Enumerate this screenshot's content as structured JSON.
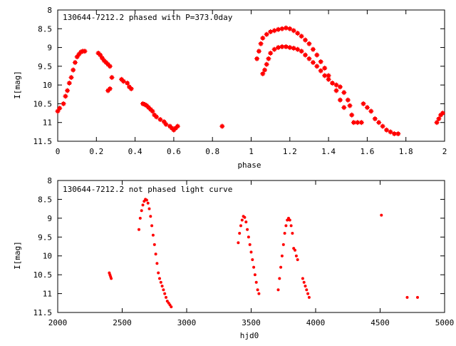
{
  "colors": {
    "points": "#ff0000",
    "axes": "#000000",
    "background": "#ffffff"
  },
  "chart_data": [
    {
      "type": "scatter",
      "title": "130644-7212.2 phased with P=373.0day",
      "xlabel": "phase",
      "ylabel": "I[mag]",
      "xlim": [
        0,
        2
      ],
      "ylim": [
        8,
        11.5
      ],
      "y_inverted": true,
      "grid": false,
      "marker": "star",
      "xticks": [
        "0",
        "0.2",
        "0.4",
        "0.6",
        "0.8",
        "1",
        "1.2",
        "1.4",
        "1.6",
        "1.8",
        "2"
      ],
      "xtick_values": [
        0,
        0.2,
        0.4,
        0.6,
        0.8,
        1,
        1.2,
        1.4,
        1.6,
        1.8,
        2
      ],
      "yticks": [
        "8",
        "8.5",
        "9",
        "9.5",
        "10",
        "10.5",
        "11",
        "11.5"
      ],
      "ytick_values": [
        8,
        8.5,
        9,
        9.5,
        10,
        10.5,
        11,
        11.5
      ],
      "series": [
        {
          "x": [
            0.0,
            0.01,
            0.03,
            0.04,
            0.05,
            0.06,
            0.07,
            0.08,
            0.09,
            0.1,
            0.11,
            0.12,
            0.13,
            0.14,
            0.21,
            0.22,
            0.23,
            0.24,
            0.25,
            0.26,
            0.27,
            0.28,
            0.26,
            0.27,
            0.33,
            0.34,
            0.36,
            0.37,
            0.38,
            0.44,
            0.45,
            0.46,
            0.47,
            0.48,
            0.49,
            0.5,
            0.51,
            0.53,
            0.55,
            0.56,
            0.58,
            0.59,
            0.6,
            0.61,
            0.62,
            0.85,
            1.03,
            1.04,
            1.05,
            1.06,
            1.08,
            1.1,
            1.12,
            1.14,
            1.16,
            1.18,
            1.2,
            1.22,
            1.24,
            1.26,
            1.28,
            1.3,
            1.32,
            1.34,
            1.36,
            1.38,
            1.4,
            1.42,
            1.44,
            1.46,
            1.48,
            1.06,
            1.07,
            1.08,
            1.09,
            1.1,
            1.12,
            1.14,
            1.16,
            1.18,
            1.2,
            1.22,
            1.24,
            1.26,
            1.28,
            1.3,
            1.32,
            1.34,
            1.36,
            1.38,
            1.4,
            1.42,
            1.44,
            1.46,
            1.48,
            1.5,
            1.51,
            1.52,
            1.53,
            1.55,
            1.57,
            1.58,
            1.6,
            1.62,
            1.64,
            1.66,
            1.68,
            1.7,
            1.72,
            1.74,
            1.76,
            1.96,
            1.97,
            1.98,
            1.99
          ],
          "y": [
            10.7,
            10.62,
            10.5,
            10.3,
            10.15,
            9.95,
            9.8,
            9.6,
            9.4,
            9.25,
            9.18,
            9.12,
            9.1,
            9.1,
            9.15,
            9.2,
            9.28,
            9.35,
            9.4,
            9.45,
            9.5,
            9.8,
            10.15,
            10.1,
            9.85,
            9.9,
            9.95,
            10.05,
            10.1,
            10.5,
            10.52,
            10.55,
            10.6,
            10.65,
            10.7,
            10.8,
            10.85,
            10.92,
            10.98,
            11.05,
            11.1,
            11.15,
            11.2,
            11.15,
            11.1,
            11.1,
            9.3,
            9.1,
            8.9,
            8.75,
            8.65,
            8.58,
            8.55,
            8.52,
            8.5,
            8.48,
            8.5,
            8.55,
            8.62,
            8.7,
            8.8,
            8.9,
            9.05,
            9.2,
            9.38,
            9.55,
            9.75,
            9.95,
            10.15,
            10.4,
            10.6,
            9.7,
            9.6,
            9.45,
            9.3,
            9.15,
            9.05,
            9.0,
            8.98,
            8.98,
            9.0,
            9.02,
            9.05,
            9.1,
            9.2,
            9.3,
            9.4,
            9.5,
            9.62,
            9.75,
            9.85,
            9.95,
            10.0,
            10.05,
            10.2,
            10.4,
            10.55,
            10.8,
            11.0,
            11.0,
            11.0,
            10.5,
            10.6,
            10.7,
            10.9,
            11.0,
            11.1,
            11.2,
            11.25,
            11.3,
            11.3,
            11.0,
            10.9,
            10.8,
            10.75
          ]
        }
      ]
    },
    {
      "type": "scatter",
      "title": "130644-7212.2 not phased light curve",
      "xlabel": "hjd0",
      "ylabel": "I[mag]",
      "xlim": [
        2000,
        5000
      ],
      "ylim": [
        8,
        11.5
      ],
      "y_inverted": true,
      "grid": false,
      "marker": "dot",
      "xticks": [
        "2000",
        "2500",
        "3000",
        "3500",
        "4000",
        "4500",
        "5000"
      ],
      "xtick_values": [
        2000,
        2500,
        3000,
        3500,
        4000,
        4500,
        5000
      ],
      "yticks": [
        "8",
        "8.5",
        "9",
        "9.5",
        "10",
        "10.5",
        "11",
        "11.5"
      ],
      "ytick_values": [
        8,
        8.5,
        9,
        9.5,
        10,
        10.5,
        11,
        11.5
      ],
      "series": [
        {
          "x": [
            2400,
            2405,
            2410,
            2415,
            2630,
            2640,
            2650,
            2660,
            2670,
            2680,
            2690,
            2700,
            2710,
            2720,
            2730,
            2740,
            2750,
            2760,
            2770,
            2780,
            2790,
            2800,
            2810,
            2820,
            2830,
            2840,
            2850,
            2860,
            2870,
            2880,
            3400,
            3410,
            3420,
            3430,
            3440,
            3450,
            3460,
            3470,
            3480,
            3490,
            3500,
            3510,
            3520,
            3530,
            3540,
            3550,
            3560,
            3710,
            3720,
            3730,
            3740,
            3750,
            3760,
            3770,
            3780,
            3790,
            3800,
            3810,
            3820,
            3830,
            3840,
            3850,
            3860,
            3900,
            3910,
            3920,
            3930,
            3940,
            3950,
            4510,
            4710,
            4790
          ],
          "y": [
            10.45,
            10.5,
            10.55,
            10.6,
            9.3,
            9.0,
            8.8,
            8.65,
            8.55,
            8.5,
            8.52,
            8.6,
            8.75,
            8.95,
            9.2,
            9.45,
            9.7,
            9.95,
            10.2,
            10.45,
            10.6,
            10.7,
            10.8,
            10.9,
            11.0,
            11.1,
            11.2,
            11.25,
            11.3,
            11.35,
            9.65,
            9.4,
            9.2,
            9.05,
            8.95,
            8.98,
            9.1,
            9.3,
            9.5,
            9.7,
            9.9,
            10.1,
            10.3,
            10.5,
            10.7,
            10.9,
            11.0,
            10.9,
            10.6,
            10.3,
            10.0,
            9.7,
            9.4,
            9.2,
            9.05,
            9.0,
            9.05,
            9.2,
            9.4,
            9.8,
            9.85,
            10.0,
            10.1,
            10.6,
            10.7,
            10.8,
            10.9,
            11.0,
            11.1,
            8.92,
            11.1,
            11.1
          ]
        }
      ]
    }
  ]
}
